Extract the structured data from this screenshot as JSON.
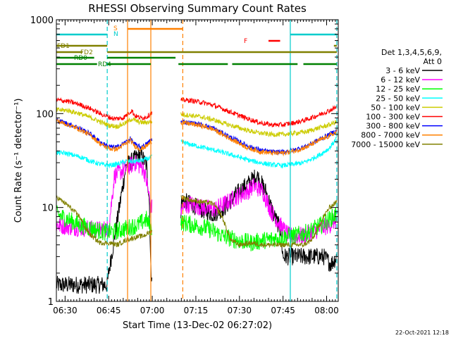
{
  "chart_data": {
    "type": "line",
    "title": "RHESSI Observing Summary Count Rates",
    "xlabel": "Start Time (13-Dec-02 06:27:02)",
    "ylabel": "Count Rate (s⁻¹ detector⁻¹)",
    "ylog": true,
    "ylim": [
      1,
      1000
    ],
    "xlim_min": [
      0,
      97
    ],
    "x_ticks": [
      {
        "min": 3,
        "label": "06:30"
      },
      {
        "min": 18,
        "label": "06:45"
      },
      {
        "min": 33,
        "label": "07:00"
      },
      {
        "min": 48,
        "label": "07:15"
      },
      {
        "min": 63,
        "label": "07:30"
      },
      {
        "min": 78,
        "label": "07:45"
      },
      {
        "min": 93,
        "label": "08:00"
      }
    ],
    "y_ticks": [
      {
        "v": 1000,
        "label": "1000"
      },
      {
        "v": 100,
        "label": "100"
      },
      {
        "v": 10,
        "label": "10"
      },
      {
        "v": 1,
        "label": "1"
      }
    ],
    "legend_header": [
      "Det 1,3,4,5,6,9,",
      "Att 0"
    ],
    "series": [
      {
        "name": "3 - 6 keV",
        "color": "#000000",
        "points": [
          [
            0,
            1.5
          ],
          [
            17.5,
            1.5
          ],
          [
            18,
            2
          ],
          [
            24,
            28
          ],
          [
            27,
            33
          ],
          [
            29,
            37
          ],
          [
            31,
            28
          ],
          [
            32,
            12
          ],
          [
            32.5,
            2
          ],
          [
            42.5,
            2
          ],
          [
            43,
            12
          ],
          [
            46,
            11
          ],
          [
            50,
            9.5
          ],
          [
            54,
            8.5
          ],
          [
            58,
            10
          ],
          [
            62,
            14
          ],
          [
            66,
            18
          ],
          [
            69,
            22
          ],
          [
            72,
            15
          ],
          [
            75,
            8
          ],
          [
            77,
            6
          ],
          [
            78,
            3
          ],
          [
            92,
            3
          ],
          [
            94.5,
            2.5
          ],
          [
            96.5,
            3
          ]
        ]
      },
      {
        "name": "6 - 12 keV",
        "color": "#ff00ff",
        "points": [
          [
            0,
            6.5
          ],
          [
            5,
            6.2
          ],
          [
            10,
            6
          ],
          [
            15,
            5.8
          ],
          [
            18,
            6
          ],
          [
            20,
            22
          ],
          [
            24,
            26
          ],
          [
            27,
            30
          ],
          [
            30,
            26
          ],
          [
            31.5,
            16
          ],
          [
            32.5,
            10
          ],
          [
            43,
            9.5
          ],
          [
            46,
            11
          ],
          [
            50,
            10
          ],
          [
            54,
            9.5
          ],
          [
            58,
            11
          ],
          [
            62,
            13
          ],
          [
            66,
            15
          ],
          [
            68,
            17
          ],
          [
            71,
            15
          ],
          [
            74,
            9
          ],
          [
            77,
            6.5
          ],
          [
            80,
            5
          ],
          [
            85,
            5
          ],
          [
            90,
            5.8
          ],
          [
            94,
            6.5
          ],
          [
            96.5,
            7.5
          ]
        ]
      },
      {
        "name": "12 - 25 keV",
        "color": "#00ff00",
        "points": [
          [
            0,
            8.5
          ],
          [
            4,
            7.5
          ],
          [
            8,
            6.5
          ],
          [
            12,
            6
          ],
          [
            16,
            5.5
          ],
          [
            20,
            5.5
          ],
          [
            24,
            6
          ],
          [
            28,
            6.5
          ],
          [
            31,
            7.5
          ],
          [
            32.5,
            6
          ],
          [
            43,
            7
          ],
          [
            47,
            6.5
          ],
          [
            52,
            6
          ],
          [
            57,
            5
          ],
          [
            62,
            4.5
          ],
          [
            67,
            4.2
          ],
          [
            72,
            4.5
          ],
          [
            77,
            4.8
          ],
          [
            82,
            5
          ],
          [
            87,
            5.5
          ],
          [
            91,
            6.5
          ],
          [
            94,
            7.5
          ],
          [
            96.5,
            8.5
          ]
        ]
      },
      {
        "name": "25 - 50 keV",
        "color": "#00ffff",
        "points": [
          [
            0,
            38
          ],
          [
            3,
            38
          ],
          [
            6,
            36
          ],
          [
            9,
            34
          ],
          [
            12,
            31
          ],
          [
            15,
            29
          ],
          [
            18,
            28
          ],
          [
            21,
            29
          ],
          [
            24,
            31
          ],
          [
            27,
            31
          ],
          [
            30,
            32
          ],
          [
            32.5,
            34
          ],
          [
            43,
            50
          ],
          [
            46,
            47
          ],
          [
            50,
            44
          ],
          [
            54,
            41
          ],
          [
            58,
            38
          ],
          [
            62,
            35
          ],
          [
            66,
            32
          ],
          [
            70,
            30
          ],
          [
            74,
            28.5
          ],
          [
            78,
            28
          ],
          [
            82,
            29
          ],
          [
            85,
            30
          ],
          [
            88,
            33
          ],
          [
            91,
            37
          ],
          [
            94,
            43
          ],
          [
            96.5,
            55
          ]
        ]
      },
      {
        "name": "50 - 100 keV",
        "color": "#cccc00",
        "points": [
          [
            0,
            110
          ],
          [
            4,
            108
          ],
          [
            8,
            100
          ],
          [
            12,
            90
          ],
          [
            15,
            82
          ],
          [
            18,
            75
          ],
          [
            21,
            73
          ],
          [
            24,
            80
          ],
          [
            26,
            88
          ],
          [
            28,
            82
          ],
          [
            30,
            80
          ],
          [
            32.5,
            82
          ],
          [
            43,
            98
          ],
          [
            46,
            96
          ],
          [
            50,
            92
          ],
          [
            54,
            86
          ],
          [
            58,
            78
          ],
          [
            62,
            72
          ],
          [
            66,
            66
          ],
          [
            70,
            62
          ],
          [
            74,
            60
          ],
          [
            78,
            60
          ],
          [
            82,
            62
          ],
          [
            86,
            64
          ],
          [
            90,
            70
          ],
          [
            94,
            76
          ],
          [
            96.5,
            82
          ]
        ]
      },
      {
        "name": "100 - 300 keV",
        "color": "#ff0000",
        "points": [
          [
            0,
            140
          ],
          [
            4,
            135
          ],
          [
            8,
            125
          ],
          [
            12,
            112
          ],
          [
            15,
            100
          ],
          [
            18,
            92
          ],
          [
            20,
            88
          ],
          [
            23,
            90
          ],
          [
            25,
            102
          ],
          [
            26,
            108
          ],
          [
            27,
            95
          ],
          [
            29,
            90
          ],
          [
            31,
            92
          ],
          [
            32.5,
            100
          ],
          [
            43,
            140
          ],
          [
            46,
            138
          ],
          [
            50,
            132
          ],
          [
            54,
            123
          ],
          [
            58,
            110
          ],
          [
            62,
            98
          ],
          [
            66,
            88
          ],
          [
            70,
            80
          ],
          [
            74,
            76
          ],
          [
            78,
            76
          ],
          [
            82,
            80
          ],
          [
            86,
            86
          ],
          [
            90,
            96
          ],
          [
            94,
            108
          ],
          [
            96.5,
            118
          ]
        ]
      },
      {
        "name": "300 - 800 keV",
        "color": "#0000ff",
        "points": [
          [
            0,
            85
          ],
          [
            4,
            78
          ],
          [
            8,
            70
          ],
          [
            12,
            60
          ],
          [
            15,
            50
          ],
          [
            17,
            46
          ],
          [
            19,
            44
          ],
          [
            21,
            44
          ],
          [
            24,
            50
          ],
          [
            25.5,
            54
          ],
          [
            27,
            47
          ],
          [
            29,
            44
          ],
          [
            31,
            47
          ],
          [
            32.5,
            52
          ],
          [
            43,
            82
          ],
          [
            46,
            80
          ],
          [
            50,
            76
          ],
          [
            54,
            70
          ],
          [
            58,
            60
          ],
          [
            62,
            52
          ],
          [
            66,
            45
          ],
          [
            70,
            41
          ],
          [
            74,
            39
          ],
          [
            78,
            39
          ],
          [
            82,
            41
          ],
          [
            86,
            45
          ],
          [
            90,
            52
          ],
          [
            94,
            60
          ],
          [
            96.5,
            66
          ]
        ]
      },
      {
        "name": "800 - 7000 keV",
        "color": "#ff8000",
        "points": [
          [
            0,
            84
          ],
          [
            4,
            76
          ],
          [
            8,
            68
          ],
          [
            12,
            58
          ],
          [
            15,
            48
          ],
          [
            17,
            44
          ],
          [
            19,
            42
          ],
          [
            21,
            42
          ],
          [
            24,
            48
          ],
          [
            25.5,
            52
          ],
          [
            27,
            45
          ],
          [
            29,
            42
          ],
          [
            31,
            45
          ],
          [
            32.5,
            50
          ],
          [
            43,
            80
          ],
          [
            46,
            78
          ],
          [
            50,
            74
          ],
          [
            54,
            68
          ],
          [
            58,
            58
          ],
          [
            62,
            50
          ],
          [
            66,
            43
          ],
          [
            70,
            39.5
          ],
          [
            74,
            38
          ],
          [
            78,
            38
          ],
          [
            82,
            40
          ],
          [
            86,
            44
          ],
          [
            90,
            51
          ],
          [
            94,
            58
          ],
          [
            96.5,
            64
          ]
        ]
      },
      {
        "name": "7000 - 15000 keV",
        "color": "#808000",
        "points": [
          [
            0,
            13
          ],
          [
            4,
            10.5
          ],
          [
            8,
            8
          ],
          [
            10,
            6
          ],
          [
            12,
            5
          ],
          [
            15,
            4.2
          ],
          [
            18,
            4.2
          ],
          [
            21,
            4
          ],
          [
            24,
            4.5
          ],
          [
            27,
            4.8
          ],
          [
            30,
            5
          ],
          [
            32.5,
            5.5
          ],
          [
            43,
            13
          ],
          [
            46,
            12
          ],
          [
            50,
            11.5
          ],
          [
            54,
            11
          ],
          [
            57,
            8
          ],
          [
            60,
            4.5
          ],
          [
            63,
            4
          ],
          [
            67,
            4.2
          ],
          [
            71,
            4
          ],
          [
            75,
            4
          ],
          [
            80,
            4
          ],
          [
            85,
            4
          ],
          [
            88,
            4.5
          ],
          [
            90,
            6
          ],
          [
            92,
            8
          ],
          [
            94,
            10
          ],
          [
            96.5,
            11.5
          ]
        ]
      }
    ],
    "flags": [
      {
        "label": "S",
        "color": "#ff8000",
        "segments": [
          [
            24.5,
            43.5
          ]
        ]
      },
      {
        "label": "N",
        "color": "#00cccc",
        "segments": [
          [
            0,
            17.5
          ],
          [
            80.5,
            96.5
          ]
        ]
      },
      {
        "label": "F",
        "color": "#ff0000",
        "segments": [
          [
            73,
            77
          ]
        ]
      },
      {
        "label": "FD1",
        "color": "#808000",
        "segments": [
          [
            0,
            17.5
          ],
          [
            95.5,
            96.5
          ]
        ]
      },
      {
        "label": "FD2",
        "color": "#808000",
        "segments": [
          [
            0,
            9
          ],
          [
            17.5,
            96.5
          ]
        ]
      },
      {
        "label": "RD0",
        "color": "#008000",
        "segments": [
          [
            0,
            13
          ],
          [
            17.5,
            41
          ]
        ]
      },
      {
        "label": "RD4",
        "color": "#008000",
        "segments": [
          [
            0,
            14
          ],
          [
            17.5,
            32.5
          ],
          [
            42,
            59
          ],
          [
            60.5,
            83
          ],
          [
            85,
            96.5
          ]
        ]
      }
    ],
    "vlines": [
      {
        "min": 17.5,
        "color": "#00cccc",
        "style": "dashed"
      },
      {
        "min": 24.5,
        "color": "#ff8000",
        "style": "solid"
      },
      {
        "min": 32.5,
        "color": "#ff8000",
        "style": "solid"
      },
      {
        "min": 43.5,
        "color": "#ff8000",
        "style": "dashed"
      },
      {
        "min": 80.5,
        "color": "#00cccc",
        "style": "solid"
      },
      {
        "min": 96.5,
        "color": "#00cccc",
        "style": "dashed"
      }
    ],
    "stamp": "22-Oct-2021 12:18"
  }
}
